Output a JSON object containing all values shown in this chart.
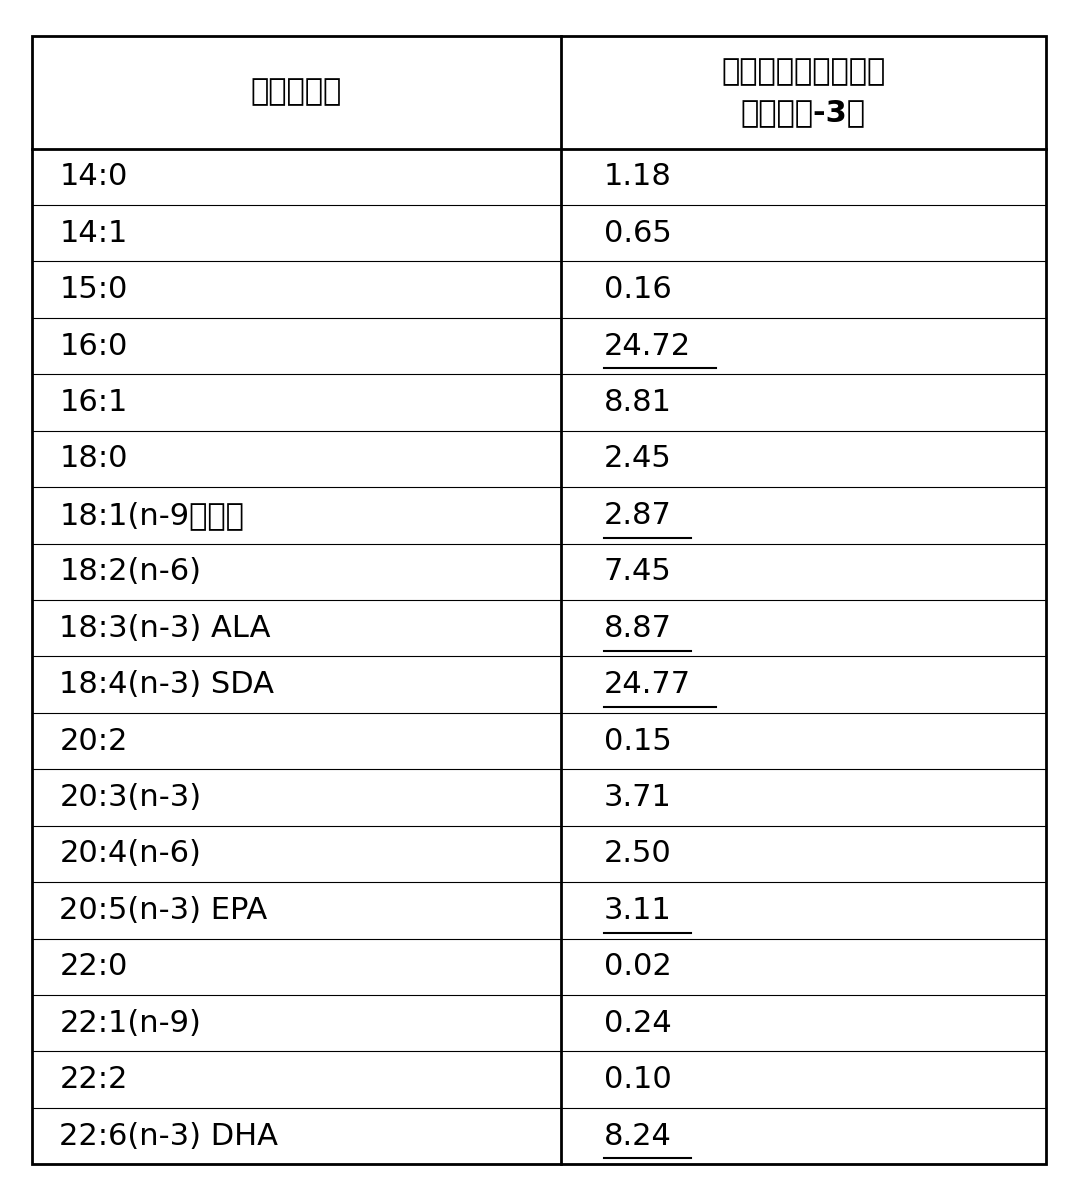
{
  "col1_header": "脂肪酸成分",
  "col2_header": "占总脂肪酸的百分比\n（培养基-3）",
  "rows": [
    {
      "label": "14:0",
      "value": "1.18",
      "underline": false
    },
    {
      "label": "14:1",
      "value": "0.65",
      "underline": false
    },
    {
      "label": "15:0",
      "value": "0.16",
      "underline": false
    },
    {
      "label": "16:0",
      "value": "24.72",
      "underline": true
    },
    {
      "label": "16:1",
      "value": "8.81",
      "underline": false
    },
    {
      "label": "18:0",
      "value": "2.45",
      "underline": false
    },
    {
      "label": "18:1(n-9）油酸",
      "value": "2.87",
      "underline": true
    },
    {
      "label": "18:2(n-6)",
      "value": "7.45",
      "underline": false
    },
    {
      "label": "18:3(n-3) ALA",
      "value": "8.87",
      "underline": true
    },
    {
      "label": "18:4(n-3) SDA",
      "value": "24.77",
      "underline": true
    },
    {
      "label": "20:2",
      "value": "0.15",
      "underline": false
    },
    {
      "label": "20:3(n-3)",
      "value": "3.71",
      "underline": false
    },
    {
      "label": "20:4(n-6)",
      "value": "2.50",
      "underline": false
    },
    {
      "label": "20:5(n-3) EPA",
      "value": "3.11",
      "underline": true
    },
    {
      "label": "22:0",
      "value": "0.02",
      "underline": false
    },
    {
      "label": "22:1(n-9)",
      "value": "0.24",
      "underline": false
    },
    {
      "label": "22:2",
      "value": "0.10",
      "underline": false
    },
    {
      "label": "22:6(n-3) DHA",
      "value": "8.24",
      "underline": true
    }
  ],
  "bg_color": "#ffffff",
  "text_color": "#000000",
  "border_color": "#000000",
  "header_fontsize": 22,
  "cell_fontsize": 22,
  "col_split": 0.52
}
